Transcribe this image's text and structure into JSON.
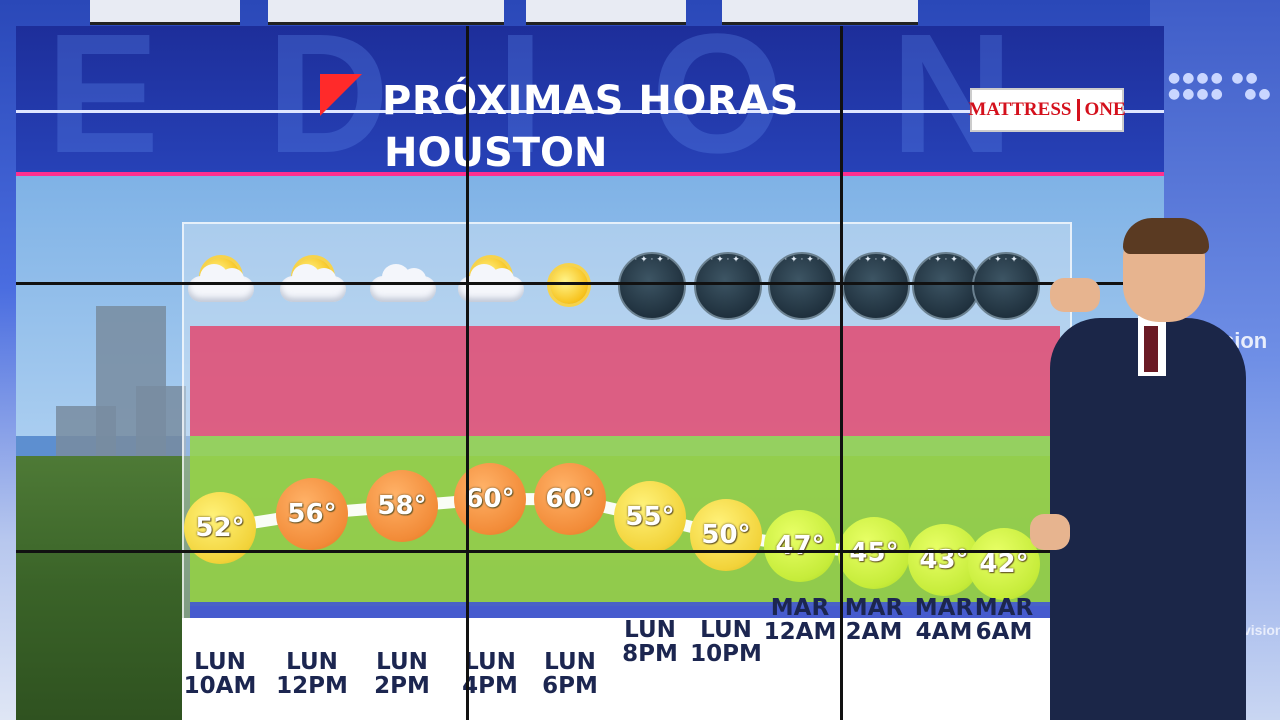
{
  "broadcast": {
    "title": "PRÓXIMAS HORAS",
    "location": "HOUSTON",
    "sponsor": {
      "name": "MATTRESS",
      "suffix": "ONE"
    },
    "studio_brand": "univision",
    "studio_brand_partial": "sion"
  },
  "forecast": [
    {
      "day": "LUN",
      "time": "10AM",
      "temp": "52°",
      "icon": "partly-cloudy-icon",
      "color": "yellow"
    },
    {
      "day": "LUN",
      "time": "12PM",
      "temp": "56°",
      "icon": "partly-cloudy-icon",
      "color": "orange"
    },
    {
      "day": "LUN",
      "time": "2PM",
      "temp": "58°",
      "icon": "cloudy-icon",
      "color": "orange"
    },
    {
      "day": "LUN",
      "time": "4PM",
      "temp": "60°",
      "icon": "partly-cloudy-icon",
      "color": "orange"
    },
    {
      "day": "LUN",
      "time": "6PM",
      "temp": "60°",
      "icon": "sunny-icon",
      "color": "orange"
    },
    {
      "day": "LUN",
      "time": "8PM",
      "temp": "55°",
      "icon": "clear-night-icon",
      "color": "yellow"
    },
    {
      "day": "LUN",
      "time": "10PM",
      "temp": "50°",
      "icon": "clear-night-icon",
      "color": "yellow"
    },
    {
      "day": "MAR",
      "time": "12AM",
      "temp": "47°",
      "icon": "clear-night-icon",
      "color": "green"
    },
    {
      "day": "MAR",
      "time": "2AM",
      "temp": "45°",
      "icon": "clear-night-icon",
      "color": "green"
    },
    {
      "day": "MAR",
      "time": "4AM",
      "temp": "43°",
      "icon": "clear-night-icon",
      "color": "green"
    },
    {
      "day": "MAR",
      "time": "6AM",
      "temp": "42°",
      "icon": "clear-night-icon",
      "color": "green"
    }
  ],
  "colors": {
    "header": "#1d2e9a",
    "accent_stripe": "#ff2f8f",
    "band_hot": "#e63c64",
    "band_mild": "#96d73c",
    "band_cool": "#3c50dc"
  }
}
